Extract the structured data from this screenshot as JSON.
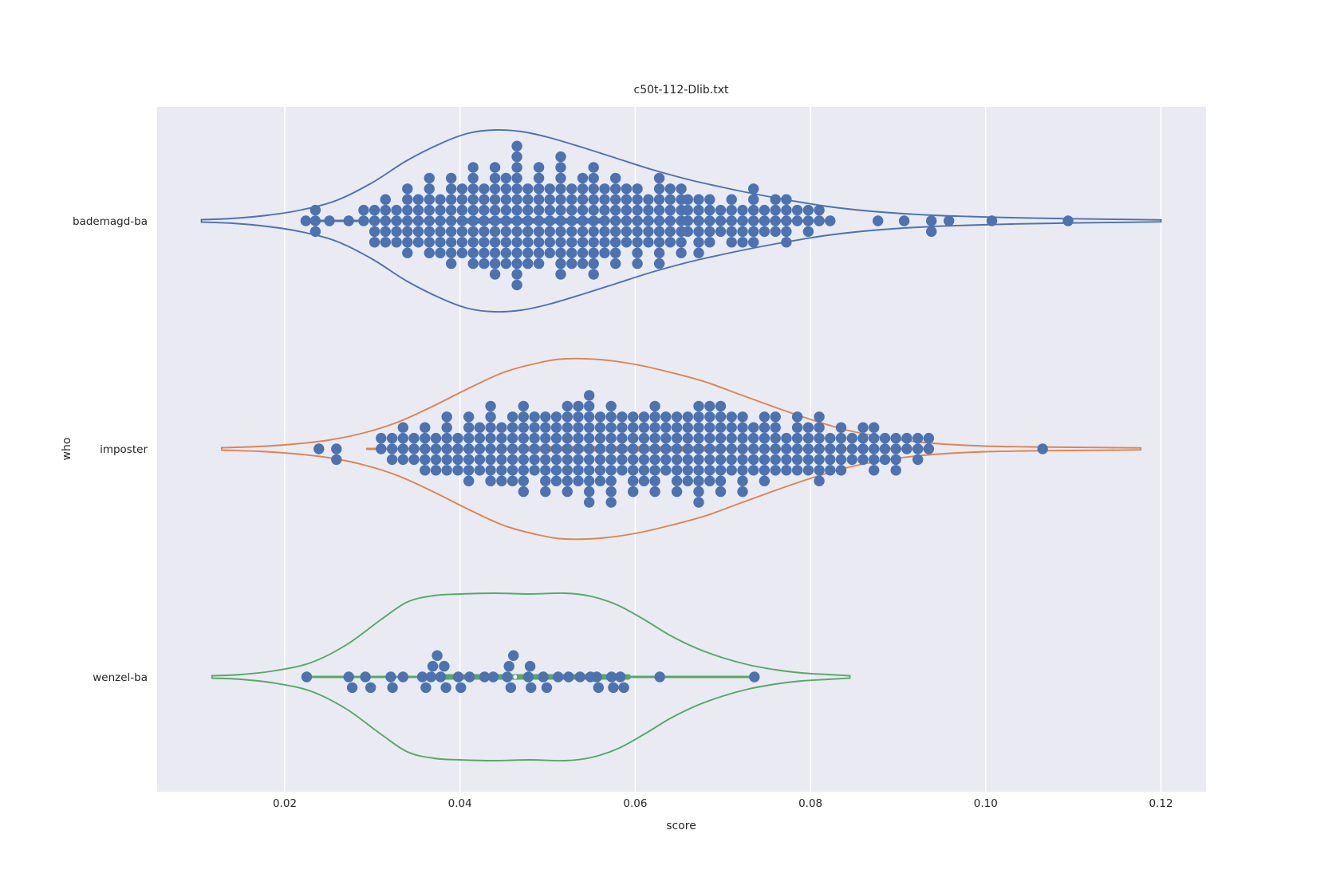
{
  "chart_data": {
    "type": "violin",
    "variant": "horizontal violin plots with swarm overlay and inner box",
    "title": "c50t-112-Dlib.txt",
    "xlabel": "score",
    "ylabel": "who",
    "categories": [
      "bademagd-ba",
      "imposter",
      "wenzel-ba"
    ],
    "x_ticks": [
      0.02,
      0.04,
      0.06,
      0.08,
      0.1,
      0.12
    ],
    "x_tick_labels": [
      "0.02",
      "0.04",
      "0.06",
      "0.08",
      "0.10",
      "0.12"
    ],
    "xlim": [
      0.0055,
      0.1255
    ],
    "grid": true,
    "legend": "none",
    "colors": {
      "plot_background": "#eaeaf2",
      "gridline": "#ffffff",
      "text": "#262626",
      "swarm_points": "#4c72b0",
      "median_dot": "#ffffff"
    },
    "series": [
      {
        "name": "bademagd-ba",
        "color": "#4c72b0",
        "violin_profile": [
          [
            0.0105,
            1.5
          ],
          [
            0.014,
            3
          ],
          [
            0.018,
            7
          ],
          [
            0.022,
            14
          ],
          [
            0.026,
            26
          ],
          [
            0.03,
            48
          ],
          [
            0.034,
            76
          ],
          [
            0.038,
            98
          ],
          [
            0.041,
            110
          ],
          [
            0.044,
            114
          ],
          [
            0.047,
            112
          ],
          [
            0.05,
            105
          ],
          [
            0.054,
            92
          ],
          [
            0.058,
            78
          ],
          [
            0.062,
            64
          ],
          [
            0.066,
            52
          ],
          [
            0.07,
            42
          ],
          [
            0.074,
            33
          ],
          [
            0.078,
            25
          ],
          [
            0.082,
            18
          ],
          [
            0.086,
            13
          ],
          [
            0.09,
            9.5
          ],
          [
            0.094,
            7
          ],
          [
            0.098,
            5.5
          ],
          [
            0.103,
            4
          ],
          [
            0.108,
            3
          ],
          [
            0.113,
            2.2
          ],
          [
            0.12,
            1.2
          ]
        ],
        "box": {
          "whisker_min": 0.0235,
          "q1": 0.04,
          "median": 0.0462,
          "q3": 0.0565,
          "whisker_max": 0.0825
        },
        "swarm_columns": [
          [
            0.029,
            2
          ],
          [
            0.03025,
            4
          ],
          [
            0.0315,
            5
          ],
          [
            0.03275,
            4
          ],
          [
            0.034,
            7
          ],
          [
            0.03525,
            5
          ],
          [
            0.0365,
            8
          ],
          [
            0.03775,
            6
          ],
          [
            0.039,
            9
          ],
          [
            0.04025,
            7
          ],
          [
            0.0415,
            10
          ],
          [
            0.04275,
            8
          ],
          [
            0.044,
            11
          ],
          [
            0.04525,
            9
          ],
          [
            0.0465,
            14
          ],
          [
            0.04775,
            8
          ],
          [
            0.049,
            10
          ],
          [
            0.05025,
            7
          ],
          [
            0.0515,
            12
          ],
          [
            0.05275,
            8
          ],
          [
            0.054,
            9
          ],
          [
            0.05525,
            11
          ],
          [
            0.0565,
            7
          ],
          [
            0.05775,
            9
          ],
          [
            0.059,
            6
          ],
          [
            0.06025,
            8
          ],
          [
            0.0615,
            5
          ],
          [
            0.06275,
            9
          ],
          [
            0.064,
            6
          ],
          [
            0.06525,
            7
          ],
          [
            0.066,
            4
          ],
          [
            0.06725,
            6
          ],
          [
            0.0685,
            5
          ],
          [
            0.06975,
            3
          ],
          [
            0.071,
            5
          ],
          [
            0.07225,
            4
          ],
          [
            0.0735,
            6
          ],
          [
            0.07475,
            3
          ],
          [
            0.076,
            4
          ],
          [
            0.07725,
            5
          ],
          [
            0.0785,
            2
          ],
          [
            0.07975,
            3
          ],
          [
            0.081,
            2
          ],
          [
            0.08225,
            1
          ]
        ],
        "swarm_extra": [
          [
            0.0224,
            0
          ],
          [
            0.0235,
            0
          ],
          [
            0.0235,
            1
          ],
          [
            0.0235,
            -1
          ],
          [
            0.0251,
            0
          ],
          [
            0.0273,
            0
          ],
          [
            0.0877,
            0
          ],
          [
            0.0907,
            0
          ],
          [
            0.0938,
            0
          ],
          [
            0.0938,
            -1
          ],
          [
            0.0958,
            0
          ],
          [
            0.1007,
            0
          ],
          [
            0.1094,
            0
          ]
        ]
      },
      {
        "name": "imposter",
        "color": "#dd8452",
        "violin_profile": [
          [
            0.0128,
            1.5
          ],
          [
            0.017,
            3
          ],
          [
            0.021,
            6
          ],
          [
            0.025,
            11
          ],
          [
            0.029,
            20
          ],
          [
            0.033,
            34
          ],
          [
            0.037,
            54
          ],
          [
            0.041,
            76
          ],
          [
            0.045,
            96
          ],
          [
            0.049,
            108
          ],
          [
            0.052,
            113
          ],
          [
            0.056,
            112
          ],
          [
            0.06,
            106
          ],
          [
            0.064,
            96
          ],
          [
            0.068,
            84
          ],
          [
            0.072,
            68
          ],
          [
            0.076,
            52
          ],
          [
            0.08,
            37
          ],
          [
            0.084,
            24
          ],
          [
            0.088,
            15
          ],
          [
            0.092,
            9
          ],
          [
            0.096,
            5.5
          ],
          [
            0.1,
            3.5
          ],
          [
            0.105,
            2.5
          ],
          [
            0.11,
            2
          ],
          [
            0.1177,
            1.2
          ]
        ],
        "box": {
          "whisker_min": 0.0294,
          "q1": 0.047,
          "median": 0.0565,
          "q3": 0.07,
          "whisker_max": 0.0935
        },
        "swarm_columns": [
          [
            0.031,
            2
          ],
          [
            0.03225,
            3
          ],
          [
            0.0335,
            4
          ],
          [
            0.03475,
            3
          ],
          [
            0.036,
            5
          ],
          [
            0.03725,
            4
          ],
          [
            0.0385,
            6
          ],
          [
            0.03975,
            4
          ],
          [
            0.041,
            7
          ],
          [
            0.04225,
            5
          ],
          [
            0.0435,
            8
          ],
          [
            0.04475,
            6
          ],
          [
            0.046,
            7
          ],
          [
            0.04725,
            9
          ],
          [
            0.0485,
            6
          ],
          [
            0.04975,
            8
          ],
          [
            0.051,
            7
          ],
          [
            0.05225,
            9
          ],
          [
            0.0535,
            8
          ],
          [
            0.05475,
            11
          ],
          [
            0.056,
            7
          ],
          [
            0.05725,
            10
          ],
          [
            0.0585,
            6
          ],
          [
            0.05975,
            8
          ],
          [
            0.061,
            7
          ],
          [
            0.06225,
            9
          ],
          [
            0.0635,
            6
          ],
          [
            0.06475,
            8
          ],
          [
            0.066,
            7
          ],
          [
            0.06725,
            10
          ],
          [
            0.0685,
            8
          ],
          [
            0.06975,
            9
          ],
          [
            0.071,
            6
          ],
          [
            0.07225,
            8
          ],
          [
            0.0735,
            5
          ],
          [
            0.07475,
            7
          ],
          [
            0.076,
            6
          ],
          [
            0.07725,
            4
          ],
          [
            0.0785,
            6
          ],
          [
            0.07975,
            5
          ],
          [
            0.081,
            7
          ],
          [
            0.08225,
            4
          ],
          [
            0.0835,
            5
          ],
          [
            0.08475,
            3
          ],
          [
            0.086,
            4
          ],
          [
            0.08725,
            5
          ],
          [
            0.0885,
            3
          ],
          [
            0.08975,
            4
          ],
          [
            0.091,
            2
          ],
          [
            0.09225,
            3
          ],
          [
            0.0935,
            2
          ]
        ],
        "swarm_extra": [
          [
            0.0239,
            0
          ],
          [
            0.0259,
            0
          ],
          [
            0.0259,
            -1
          ],
          [
            0.1065,
            0
          ]
        ]
      },
      {
        "name": "wenzel-ba",
        "color": "#55a868",
        "violin_profile": [
          [
            0.0117,
            1.5
          ],
          [
            0.015,
            3
          ],
          [
            0.019,
            8
          ],
          [
            0.023,
            18
          ],
          [
            0.027,
            40
          ],
          [
            0.031,
            72
          ],
          [
            0.034,
            94
          ],
          [
            0.037,
            102
          ],
          [
            0.04,
            104
          ],
          [
            0.044,
            105
          ],
          [
            0.048,
            104
          ],
          [
            0.052,
            105
          ],
          [
            0.055,
            101
          ],
          [
            0.058,
            90
          ],
          [
            0.061,
            72
          ],
          [
            0.064,
            52
          ],
          [
            0.067,
            36
          ],
          [
            0.07,
            24
          ],
          [
            0.073,
            15
          ],
          [
            0.076,
            9
          ],
          [
            0.079,
            5
          ],
          [
            0.082,
            3
          ],
          [
            0.0845,
            1.5
          ]
        ],
        "box": {
          "whisker_min": 0.0225,
          "q1": 0.038,
          "median": 0.0463,
          "q3": 0.0592,
          "whisker_max": 0.0736
        },
        "swarm_columns": [],
        "swarm_extra": [
          [
            0.0225,
            0
          ],
          [
            0.0273,
            0
          ],
          [
            0.0277,
            -1
          ],
          [
            0.0292,
            0
          ],
          [
            0.0298,
            -1
          ],
          [
            0.0321,
            0
          ],
          [
            0.0323,
            -1
          ],
          [
            0.0335,
            0
          ],
          [
            0.0357,
            0
          ],
          [
            0.0361,
            -1
          ],
          [
            0.0367,
            0
          ],
          [
            0.0369,
            1
          ],
          [
            0.0374,
            2
          ],
          [
            0.0378,
            0
          ],
          [
            0.0382,
            1
          ],
          [
            0.0384,
            -1
          ],
          [
            0.0398,
            0
          ],
          [
            0.0401,
            -1
          ],
          [
            0.0411,
            0
          ],
          [
            0.0428,
            0
          ],
          [
            0.0438,
            0
          ],
          [
            0.0454,
            0
          ],
          [
            0.0456,
            1
          ],
          [
            0.0461,
            2
          ],
          [
            0.0458,
            -1
          ],
          [
            0.0478,
            0
          ],
          [
            0.048,
            1
          ],
          [
            0.0481,
            -1
          ],
          [
            0.0495,
            0
          ],
          [
            0.0499,
            -1
          ],
          [
            0.0512,
            0
          ],
          [
            0.0524,
            0
          ],
          [
            0.0537,
            0
          ],
          [
            0.0549,
            0
          ],
          [
            0.0556,
            0
          ],
          [
            0.0558,
            -1
          ],
          [
            0.0573,
            0
          ],
          [
            0.0575,
            -1
          ],
          [
            0.0583,
            0
          ],
          [
            0.0587,
            -1
          ],
          [
            0.0628,
            0
          ],
          [
            0.0736,
            0
          ]
        ]
      }
    ]
  }
}
